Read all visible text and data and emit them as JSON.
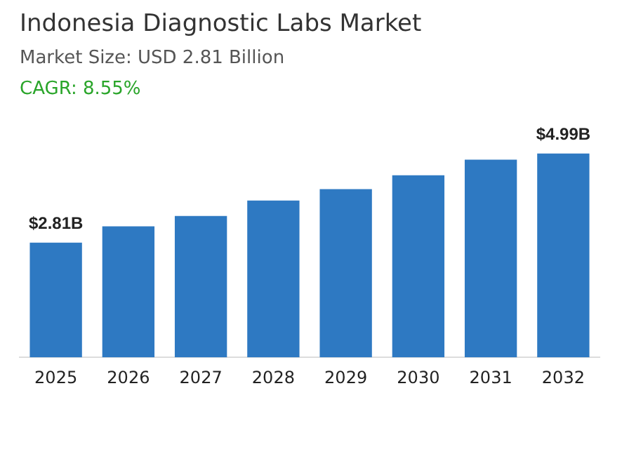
{
  "chart_data": {
    "type": "bar",
    "title": "Indonesia Diagnostic Labs Market",
    "subtitle": "Market Size: USD 2.81 Billion",
    "annotations": [
      "CAGR: 8.55%"
    ],
    "categories": [
      "2025",
      "2026",
      "2027",
      "2028",
      "2029",
      "2030",
      "2031",
      "2032"
    ],
    "values": [
      2.81,
      3.21,
      3.46,
      3.84,
      4.12,
      4.46,
      4.84,
      4.99
    ],
    "value_labels": [
      "$2.81B",
      null,
      null,
      null,
      null,
      null,
      null,
      "$4.99B"
    ],
    "color": "#2e79c2",
    "grid": false,
    "legend": false
  }
}
